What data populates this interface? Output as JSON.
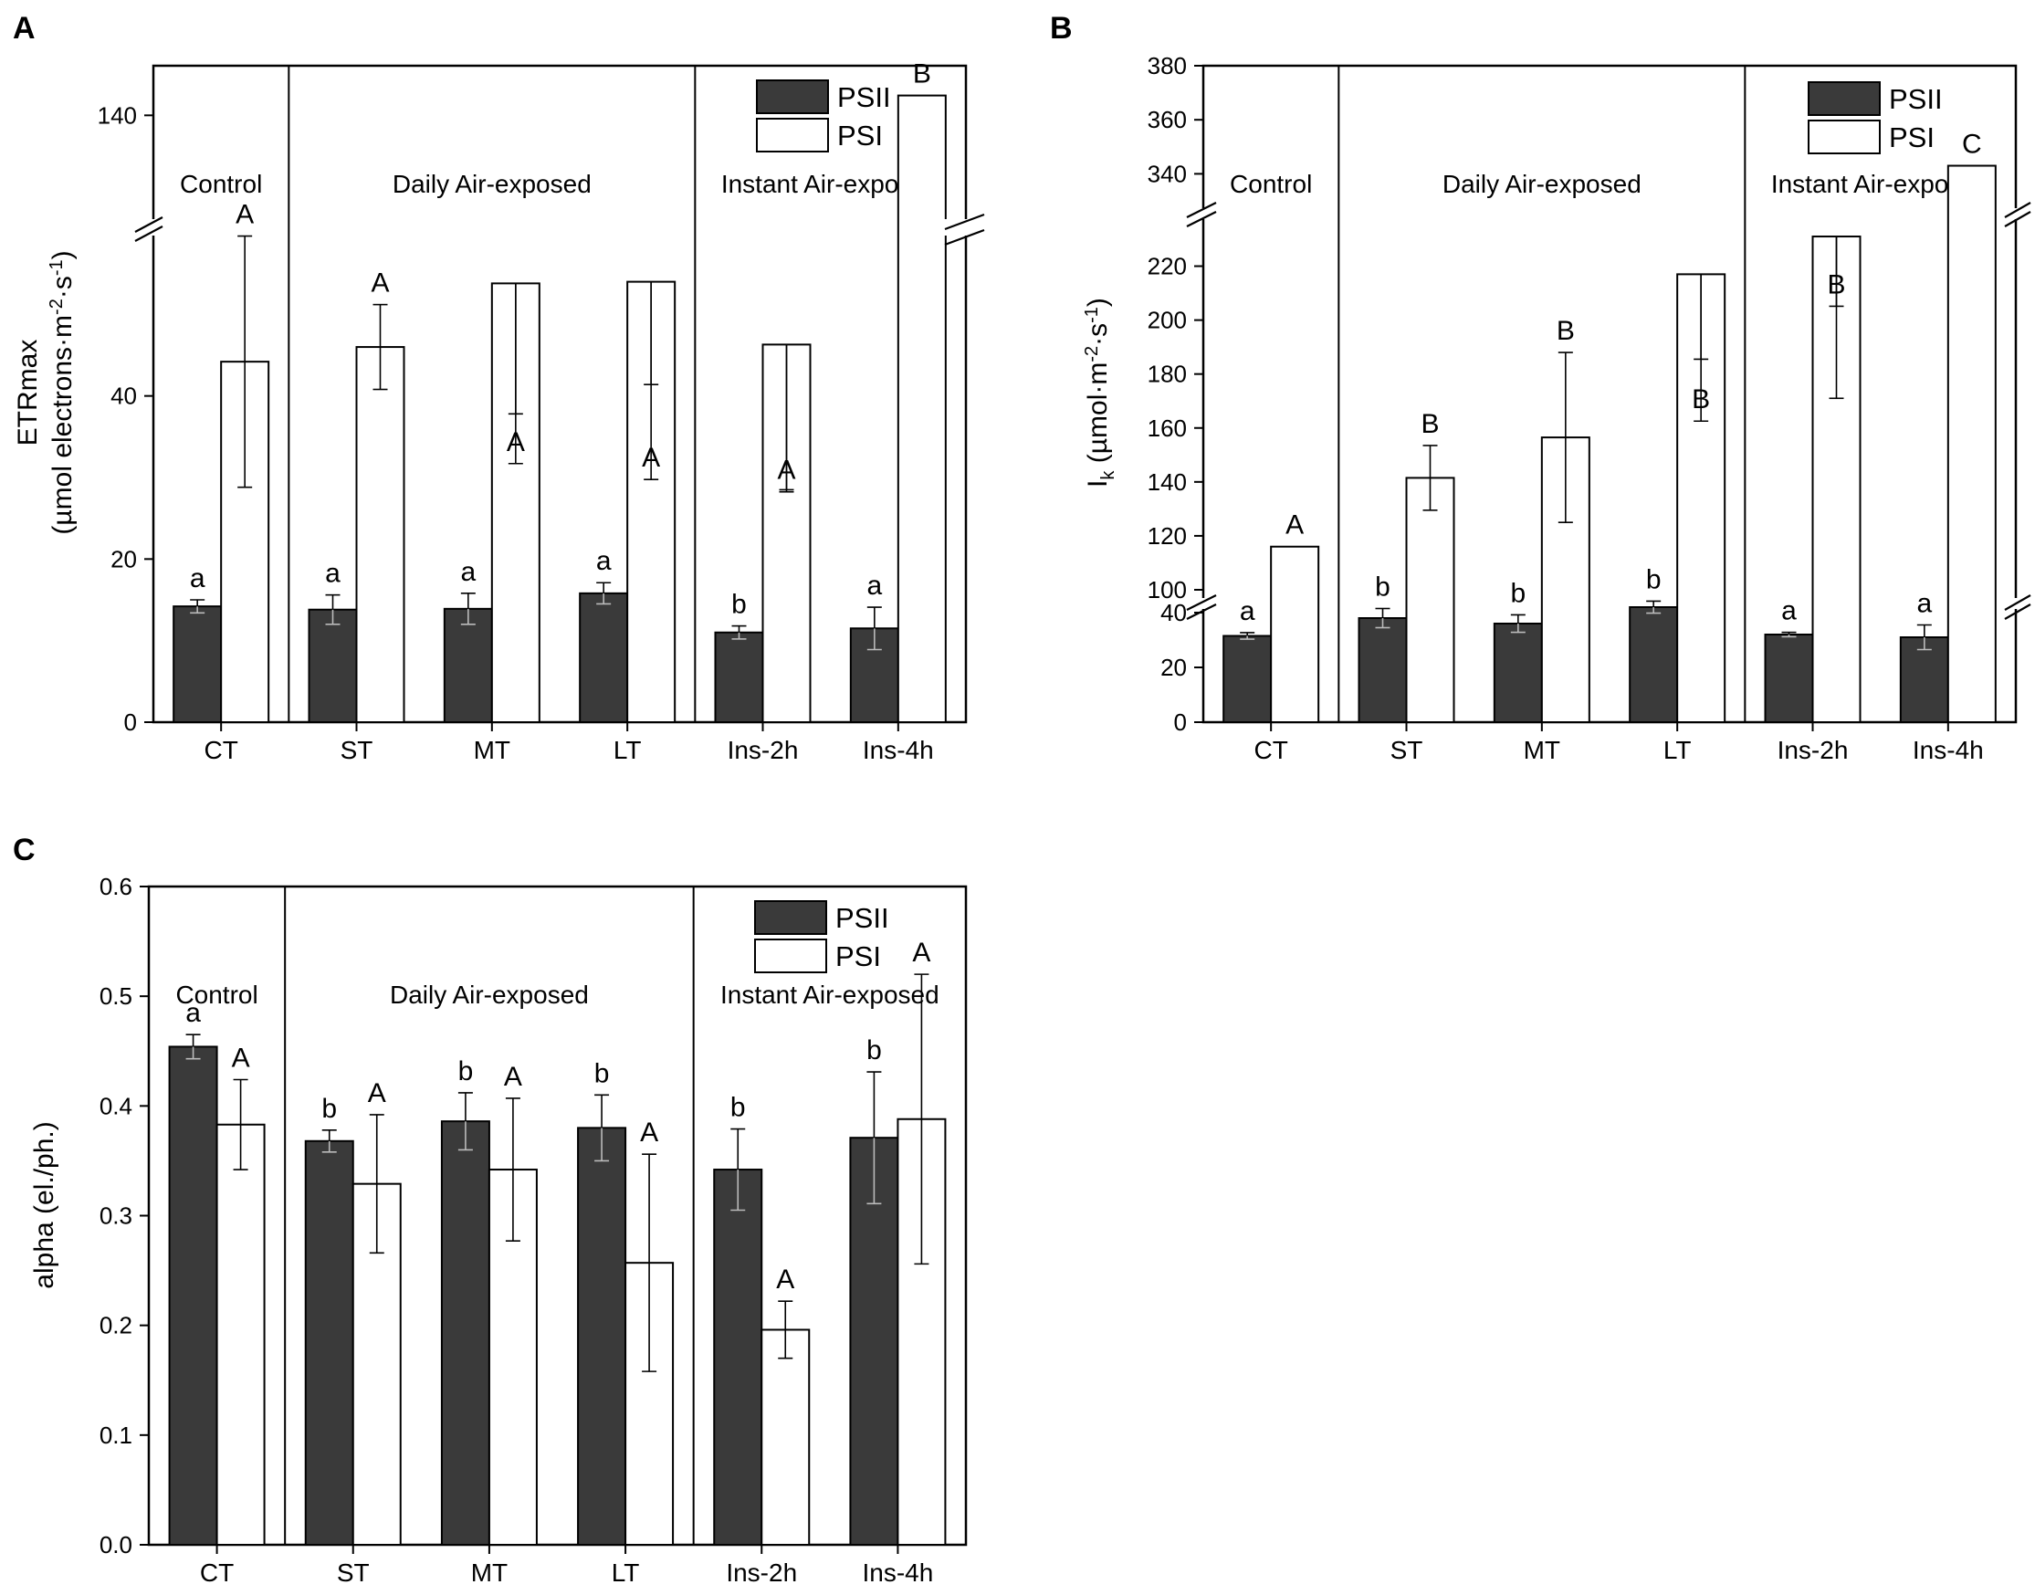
{
  "colors": {
    "psii": "#3a3a3a",
    "psi": "#ffffff",
    "axis": "#000000"
  },
  "chart_data": [
    {
      "panel": "A",
      "type": "bar",
      "ylabel": "ETRmax",
      "ylabel_unit_prefix": "(µmol electrons·m",
      "ylabel_unit_exp1": "-2",
      "ylabel_unit_mid": "·s",
      "ylabel_unit_exp2": "-1",
      "ylabel_unit_suffix": ")",
      "categories": [
        "CT",
        "ST",
        "MT",
        "LT",
        "Ins-2h",
        "Ins-4h"
      ],
      "group_labels": [
        "Control",
        "Daily Air-exposed",
        "Instant Air-exposed"
      ],
      "legend": [
        "PSII",
        "PSI"
      ],
      "axis_break": {
        "lower": [
          0,
          60
        ],
        "upper_ticks": [
          140
        ],
        "upper_range": [
          120,
          150
        ]
      },
      "yticks": [
        0,
        20,
        40,
        140
      ],
      "series": [
        {
          "name": "PSII",
          "values": [
            14.2,
            13.8,
            13.9,
            15.8,
            11.0,
            11.5
          ],
          "errors": [
            0.8,
            1.8,
            1.9,
            1.3,
            0.8,
            2.6
          ],
          "letters": [
            "a",
            "a",
            "a",
            "a",
            "b",
            "a"
          ]
        },
        {
          "name": "PSI",
          "values": [
            44.2,
            46.0,
            53.8,
            54.0,
            46.3,
            144.0
          ],
          "errors": [
            15.4,
            5.2,
            16.0,
            12.6,
            17.8,
            null
          ],
          "letters": [
            "A",
            "A",
            "A",
            "A",
            "A",
            "B"
          ]
        }
      ]
    },
    {
      "panel": "B",
      "type": "bar",
      "ylabel_main": "I",
      "ylabel_sub": "k",
      "ylabel_unit_prefix": " (µmol·m",
      "ylabel_unit_exp1": "-2",
      "ylabel_unit_mid": "·s",
      "ylabel_unit_exp2": "-1",
      "ylabel_unit_suffix": ")",
      "categories": [
        "CT",
        "ST",
        "MT",
        "LT",
        "Ins-2h",
        "Ins-4h"
      ],
      "group_labels": [
        "Control",
        "Daily Air-exposed",
        "Instant Air-exposed"
      ],
      "legend": [
        "PSII",
        "PSI"
      ],
      "yticks": [
        0,
        20,
        40,
        100,
        120,
        140,
        160,
        180,
        200,
        220,
        340,
        360,
        380
      ],
      "series": [
        {
          "name": "PSII",
          "values": [
            31.5,
            38.0,
            36.0,
            42.0,
            32.0,
            31.0
          ],
          "errors": [
            1.2,
            3.5,
            3.2,
            2.2,
            0.8,
            4.5
          ],
          "letters": [
            "a",
            "b",
            "b",
            "b",
            "a",
            "a"
          ]
        },
        {
          "name": "PSI",
          "values": [
            116.0,
            141.5,
            156.5,
            217.0,
            231.0,
            343.0
          ],
          "errors": [
            null,
            12.0,
            31.5,
            31.5,
            60.0,
            null
          ],
          "letters": [
            "A",
            "B",
            "B",
            "B",
            "B",
            "C"
          ]
        }
      ]
    },
    {
      "panel": "C",
      "type": "bar",
      "ylabel": "alpha (el./ph.)",
      "categories": [
        "CT",
        "ST",
        "MT",
        "LT",
        "Ins-2h",
        "Ins-4h"
      ],
      "group_labels": [
        "Control",
        "Daily Air-exposed",
        "Instant Air-exposed"
      ],
      "legend": [
        "PSII",
        "PSI"
      ],
      "ylim": [
        0,
        0.6
      ],
      "yticks": [
        "0.0",
        "0.1",
        "0.2",
        "0.3",
        "0.4",
        "0.5",
        "0.6"
      ],
      "series": [
        {
          "name": "PSII",
          "values": [
            0.454,
            0.368,
            0.386,
            0.38,
            0.342,
            0.371
          ],
          "errors": [
            0.011,
            0.01,
            0.026,
            0.03,
            0.037,
            0.06
          ],
          "letters": [
            "a",
            "b",
            "b",
            "b",
            "b",
            "b"
          ]
        },
        {
          "name": "PSI",
          "values": [
            0.383,
            0.329,
            0.342,
            0.257,
            0.196,
            0.388
          ],
          "errors": [
            0.041,
            0.063,
            0.065,
            0.099,
            0.026,
            0.132
          ],
          "letters": [
            "A",
            "A",
            "A",
            "A",
            "A",
            "A"
          ]
        }
      ]
    }
  ]
}
